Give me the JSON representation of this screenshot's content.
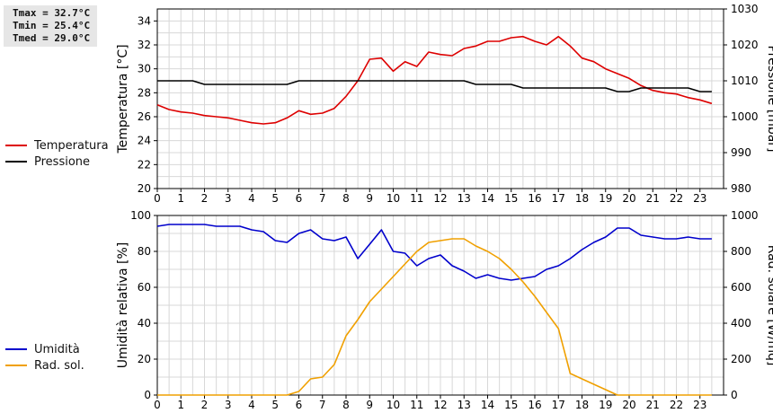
{
  "stats": {
    "tmax": "Tmax = 32.7°C",
    "tmin": "Tmin = 25.4°C",
    "tmed": "Tmed = 29.0°C"
  },
  "colors": {
    "temperatura": "#dd0000",
    "pressione": "#000000",
    "umidita": "#0000cc",
    "radsol": "#f0a000",
    "grid": "#d8d8d8"
  },
  "chart_data": [
    {
      "type": "line",
      "xlim": [
        0,
        24
      ],
      "x_ticks": [
        0,
        1,
        2,
        3,
        4,
        5,
        6,
        7,
        8,
        9,
        10,
        11,
        12,
        13,
        14,
        15,
        16,
        17,
        18,
        19,
        20,
        21,
        22,
        23
      ],
      "ylabel_left": "Temperatura [°C]",
      "ylim_left": [
        20,
        35
      ],
      "y_ticks_left": [
        20,
        22,
        24,
        26,
        28,
        30,
        32,
        34
      ],
      "ylabel_right": "Pressione [mbar]",
      "ylim_right": [
        980,
        1030
      ],
      "y_ticks_right": [
        980,
        990,
        1000,
        1010,
        1020,
        1030
      ],
      "series": [
        {
          "name": "Temperatura",
          "axis": "left",
          "color_key": "temperatura",
          "x": [
            0,
            0.5,
            1,
            1.5,
            2,
            2.5,
            3,
            3.5,
            4,
            4.5,
            5,
            5.5,
            6,
            6.5,
            7,
            7.5,
            8,
            8.5,
            9,
            9.5,
            10,
            10.5,
            11,
            11.5,
            12,
            12.5,
            13,
            13.5,
            14,
            14.5,
            15,
            15.5,
            16,
            16.5,
            17,
            17.5,
            18,
            18.5,
            19,
            19.5,
            20,
            20.5,
            21,
            21.5,
            22,
            22.5,
            23,
            23.5
          ],
          "values": [
            27.0,
            26.6,
            26.4,
            26.3,
            26.1,
            26.0,
            25.9,
            25.7,
            25.5,
            25.4,
            25.5,
            25.9,
            26.5,
            26.2,
            26.3,
            26.7,
            27.7,
            29.0,
            30.8,
            30.9,
            29.8,
            30.6,
            30.2,
            31.4,
            31.2,
            31.1,
            31.7,
            31.9,
            32.3,
            32.3,
            32.6,
            32.7,
            32.3,
            32.0,
            32.7,
            31.9,
            30.9,
            30.6,
            30.0,
            29.6,
            29.2,
            28.6,
            28.2,
            28.0,
            27.9,
            27.6,
            27.4,
            27.1
          ]
        },
        {
          "name": "Pressione",
          "axis": "right",
          "color_key": "pressione",
          "x": [
            0,
            0.5,
            1,
            1.5,
            2,
            2.5,
            3,
            3.5,
            4,
            4.5,
            5,
            5.5,
            6,
            6.5,
            7,
            7.5,
            8,
            8.5,
            9,
            9.5,
            10,
            10.5,
            11,
            11.5,
            12,
            12.5,
            13,
            13.5,
            14,
            14.5,
            15,
            15.5,
            16,
            16.5,
            17,
            17.5,
            18,
            18.5,
            19,
            19.5,
            20,
            20.5,
            21,
            21.5,
            22,
            22.5,
            23,
            23.5
          ],
          "values": [
            1010,
            1010,
            1010,
            1010,
            1009,
            1009,
            1009,
            1009,
            1009,
            1009,
            1009,
            1009,
            1010,
            1010,
            1010,
            1010,
            1010,
            1010,
            1010,
            1010,
            1010,
            1010,
            1010,
            1010,
            1010,
            1010,
            1010,
            1009,
            1009,
            1009,
            1009,
            1008,
            1008,
            1008,
            1008,
            1008,
            1008,
            1008,
            1008,
            1007,
            1007,
            1008,
            1008,
            1008,
            1008,
            1008,
            1007,
            1007
          ]
        }
      ]
    },
    {
      "type": "line",
      "xlim": [
        0,
        24
      ],
      "x_ticks": [
        0,
        1,
        2,
        3,
        4,
        5,
        6,
        7,
        8,
        9,
        10,
        11,
        12,
        13,
        14,
        15,
        16,
        17,
        18,
        19,
        20,
        21,
        22,
        23
      ],
      "ylabel_left": "Umidità relativa [%]",
      "ylim_left": [
        0,
        100
      ],
      "y_ticks_left": [
        0,
        20,
        40,
        60,
        80,
        100
      ],
      "ylabel_right": "Rad. solare [W/mq]",
      "ylim_right": [
        0,
        1000
      ],
      "y_ticks_right": [
        0,
        200,
        400,
        600,
        800,
        1000
      ],
      "series": [
        {
          "name": "Umidità",
          "axis": "left",
          "color_key": "umidita",
          "x": [
            0,
            0.5,
            1,
            1.5,
            2,
            2.5,
            3,
            3.5,
            4,
            4.5,
            5,
            5.5,
            6,
            6.5,
            7,
            7.5,
            8,
            8.5,
            9,
            9.5,
            10,
            10.5,
            11,
            11.5,
            12,
            12.5,
            13,
            13.5,
            14,
            14.5,
            15,
            15.5,
            16,
            16.5,
            17,
            17.5,
            18,
            18.5,
            19,
            19.5,
            20,
            20.5,
            21,
            21.5,
            22,
            22.5,
            23,
            23.5
          ],
          "values": [
            94,
            95,
            95,
            95,
            95,
            94,
            94,
            94,
            92,
            91,
            86,
            85,
            90,
            92,
            87,
            86,
            88,
            76,
            84,
            92,
            80,
            79,
            72,
            76,
            78,
            72,
            69,
            65,
            67,
            65,
            64,
            65,
            66,
            70,
            72,
            76,
            81,
            85,
            88,
            93,
            93,
            89,
            88,
            87,
            87,
            88,
            87,
            87
          ]
        },
        {
          "name": "Rad. sol.",
          "axis": "right",
          "color_key": "radsol",
          "x": [
            0,
            1,
            2,
            3,
            4,
            5,
            5.5,
            6,
            6.5,
            7,
            7.5,
            8,
            8.5,
            9,
            9.5,
            10,
            10.5,
            11,
            11.5,
            12,
            12.5,
            13,
            13.5,
            14,
            14.5,
            15,
            15.5,
            16,
            16.5,
            17,
            17.5,
            18,
            18.5,
            19,
            19.5,
            20,
            21,
            22,
            23,
            23.5
          ],
          "values": [
            0,
            0,
            0,
            0,
            0,
            0,
            0,
            20,
            90,
            100,
            170,
            330,
            420,
            520,
            590,
            660,
            730,
            800,
            850,
            860,
            870,
            870,
            830,
            800,
            760,
            700,
            630,
            550,
            460,
            370,
            120,
            90,
            60,
            30,
            0,
            0,
            0,
            0,
            0,
            0
          ]
        }
      ]
    }
  ]
}
